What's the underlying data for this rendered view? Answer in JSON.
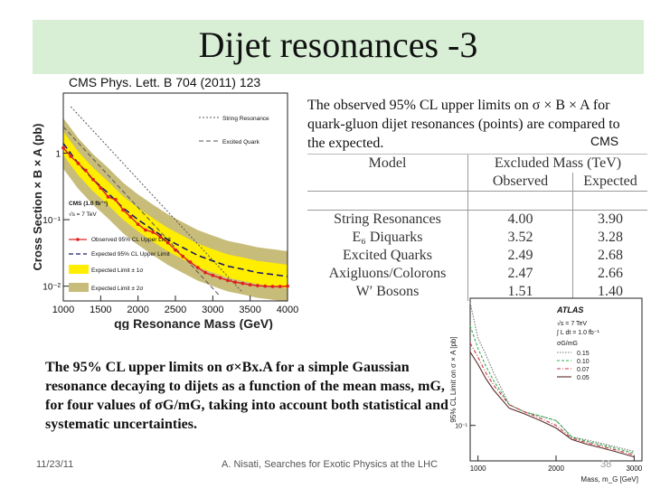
{
  "slide": {
    "title": "Dijet resonances -3",
    "reference": "CMS Phys. Lett. B 704 (2011) 123",
    "description_top": "The observed 95% CL upper limits on σ × B × A for quark-gluon dijet resonances (points) are compared to the expected.",
    "cms_tag": "CMS",
    "description_bottom": "The 95% CL upper limits on σ×Bx.A for a simple Gaussian resonance decaying to dijets as a function of the mean mass, mG, for four values of σG/mG, taking into account both statistical and systematic uncertainties.",
    "footer_date": "11/23/11",
    "footer_center": "A. Nisati, Searches for Exotic Physics at the LHC",
    "page_number": "38"
  },
  "colors": {
    "title_band": "#d8efd6",
    "observed": "#e02020",
    "band_1sigma": "#ffee00",
    "band_2sigma": "#c8bc7a",
    "atlas_015": "#777777",
    "atlas_010": "#2ab04a",
    "atlas_007": "#cc3344",
    "atlas_005": "#5a2a2a"
  },
  "table": {
    "header_model": "Model",
    "header_excluded": "Excluded Mass (TeV)",
    "header_observed": "Observed",
    "header_expected": "Expected",
    "rows": [
      {
        "model": "String Resonances",
        "observed": "4.00",
        "expected": "3.90"
      },
      {
        "model": "E₆ Diquarks",
        "observed": "3.52",
        "expected": "3.28"
      },
      {
        "model": "Excited Quarks",
        "observed": "2.49",
        "expected": "2.68"
      },
      {
        "model": "Axigluons/Colorons",
        "observed": "2.47",
        "expected": "2.66"
      },
      {
        "model": "W′ Bosons",
        "observed": "1.51",
        "expected": "1.40"
      }
    ]
  },
  "chart_data": [
    {
      "type": "line",
      "ylabel": "Cross Section × B × A (pb)",
      "xlabel": "qg Resonance Mass (GeV)",
      "xlim": [
        1000,
        4000
      ],
      "ylim": [
        0.006,
        8
      ],
      "yscale": "log",
      "xticks": [
        "1000",
        "1500",
        "2000",
        "2500",
        "3000",
        "3500",
        "4000"
      ],
      "yticks": [
        {
          "v": 1,
          "label": "1"
        },
        {
          "v": 0.1,
          "label": "10⁻¹"
        },
        {
          "v": 0.01,
          "label": "10⁻²"
        }
      ],
      "legend": {
        "cms": "CMS (1.0 fb⁻¹)",
        "energy": "√s = 7 TeV",
        "observed": "Observed 95% CL Upper Limit",
        "expected": "Expected 95% CL Upper Limit",
        "band1": "Expected Limit ± 1σ",
        "band2": "Expected Limit ± 2σ"
      },
      "theory_labels": {
        "string": "String Resonance",
        "excited": "Excited Quark"
      },
      "observed": {
        "x": [
          1000,
          1100,
          1200,
          1300,
          1400,
          1500,
          1600,
          1700,
          1800,
          1900,
          2000,
          2100,
          2200,
          2300,
          2400,
          2500,
          2600,
          2700,
          2800,
          2900,
          3000,
          3100,
          3200,
          3300,
          3400,
          3500,
          3600,
          3700,
          3800,
          3900,
          4000
        ],
        "y": [
          1.2,
          0.9,
          0.7,
          0.55,
          0.4,
          0.3,
          0.22,
          0.2,
          0.14,
          0.11,
          0.085,
          0.07,
          0.065,
          0.055,
          0.045,
          0.035,
          0.028,
          0.023,
          0.019,
          0.016,
          0.0145,
          0.0133,
          0.0122,
          0.0115,
          0.011,
          0.0105,
          0.0102,
          0.01,
          0.0099,
          0.0099,
          0.01
        ]
      },
      "expected": {
        "x": [
          1000,
          1200,
          1400,
          1600,
          1800,
          2000,
          2200,
          2400,
          2600,
          2800,
          3000,
          3200,
          3400,
          3600,
          3800,
          4000
        ],
        "y": [
          1.4,
          0.7,
          0.4,
          0.25,
          0.15,
          0.1,
          0.07,
          0.05,
          0.038,
          0.029,
          0.024,
          0.02,
          0.018,
          0.016,
          0.015,
          0.014
        ]
      },
      "string_resonance": {
        "x": [
          1100,
          3400
        ],
        "y": [
          5,
          0.008
        ]
      },
      "excited_quark": {
        "x": [
          1000,
          3100
        ],
        "y": [
          2.5,
          0.007
        ]
      }
    },
    {
      "type": "line",
      "ylabel": "95% CL Limit on σ × A [pb]",
      "xlabel": "Mass, m_G [GeV]",
      "xlim": [
        900,
        3100
      ],
      "ylim": [
        0.05,
        1.2
      ],
      "yscale": "log",
      "xticks": [
        "1000",
        "2000",
        "3000"
      ],
      "yticks": [
        {
          "v": 0.1,
          "label": "10⁻¹"
        }
      ],
      "legend": {
        "atlas": "ATLAS",
        "energy": "√s = 7 TeV",
        "lumi": "∫ L dt = 1.0 fb⁻¹",
        "ratio": "σG/mG",
        "s1": "0.15",
        "s2": "0.10",
        "s3": "0.07",
        "s4": "0.05"
      },
      "x": [
        900,
        1000,
        1100,
        1200,
        1400,
        1600,
        1800,
        2000,
        2200,
        2400,
        2600,
        2800,
        3000
      ],
      "series": [
        {
          "name": "0.15",
          "y": [
            1.1,
            0.55,
            0.4,
            0.28,
            0.15,
            0.13,
            0.12,
            0.11,
            0.08,
            0.075,
            0.07,
            0.065,
            0.06
          ]
        },
        {
          "name": "0.10",
          "y": [
            0.7,
            0.45,
            0.32,
            0.24,
            0.15,
            0.13,
            0.12,
            0.11,
            0.08,
            0.073,
            0.068,
            0.063,
            0.058
          ]
        },
        {
          "name": "0.07",
          "y": [
            0.5,
            0.38,
            0.28,
            0.22,
            0.15,
            0.13,
            0.115,
            0.1,
            0.078,
            0.071,
            0.066,
            0.061,
            0.056
          ]
        },
        {
          "name": "0.05",
          "y": [
            0.42,
            0.33,
            0.25,
            0.2,
            0.14,
            0.125,
            0.11,
            0.095,
            0.076,
            0.069,
            0.064,
            0.059,
            0.054
          ]
        }
      ]
    }
  ]
}
